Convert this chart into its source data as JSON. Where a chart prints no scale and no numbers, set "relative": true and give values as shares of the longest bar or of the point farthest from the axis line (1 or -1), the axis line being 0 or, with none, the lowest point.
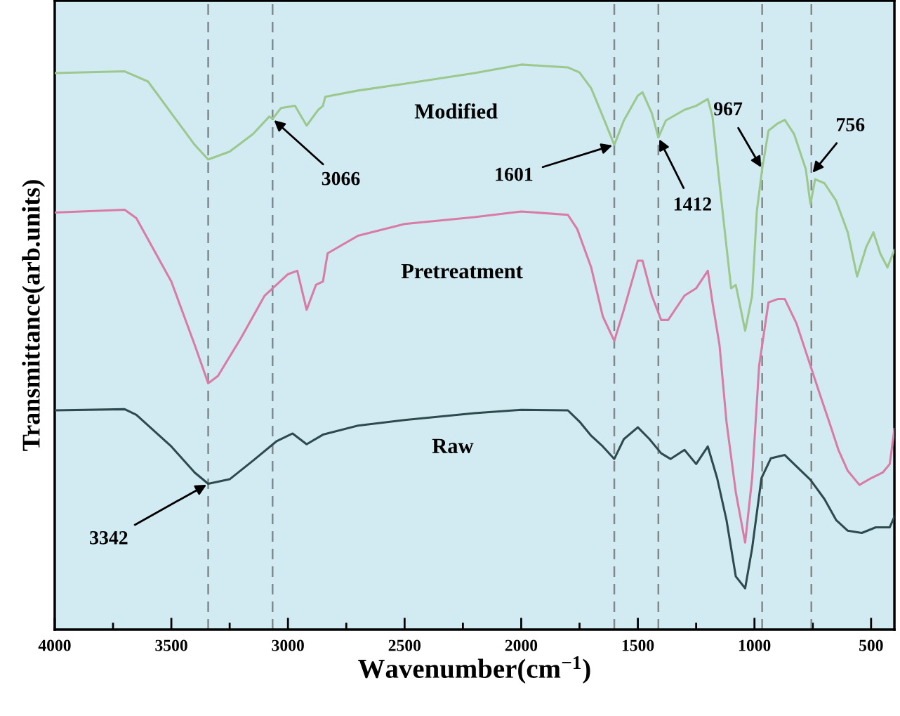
{
  "chart_data": {
    "type": "line",
    "relative": true,
    "xlabel": "Wavenumber(cm$^{−1}$)",
    "ylabel": "Transmittance(arb.units)",
    "xlim": [
      4000,
      400
    ],
    "xticks": [
      4000,
      {
        "value": 3750,
        "label": null
      },
      3500,
      {
        "value": 3250,
        "label": null
      },
      3000,
      {
        "value": 2750,
        "label": null
      },
      2500,
      {
        "value": 2250,
        "label": null
      },
      2000,
      {
        "value": 1750,
        "label": null
      },
      1500,
      {
        "value": 1250,
        "label": null
      },
      1000,
      {
        "value": 750,
        "label": null
      },
      500
    ],
    "grid": false,
    "legend": false,
    "marker": "none",
    "line_style": "solid",
    "series": [
      {
        "name": "Modified",
        "color": "#9dc88d",
        "x": [
          4000,
          3700,
          3600,
          3500,
          3400,
          3342,
          3250,
          3150,
          3080,
          3066,
          3030,
          2970,
          2920,
          2870,
          2850,
          2840,
          2700,
          2500,
          2200,
          2000,
          1800,
          1750,
          1700,
          1650,
          1601,
          1560,
          1500,
          1480,
          1440,
          1412,
          1380,
          1300,
          1250,
          1200,
          1180,
          1150,
          1120,
          1100,
          1080,
          1040,
          1010,
          990,
          967,
          940,
          900,
          870,
          830,
          780,
          760,
          740,
          700,
          650,
          600,
          560,
          520,
          490,
          460,
          430,
          400
        ],
        "values": [
          0.985,
          0.988,
          0.97,
          0.914,
          0.858,
          0.832,
          0.846,
          0.877,
          0.908,
          0.904,
          0.923,
          0.927,
          0.892,
          0.92,
          0.927,
          0.943,
          0.954,
          0.966,
          0.985,
          1,
          0.995,
          0.986,
          0.958,
          0.908,
          0.858,
          0.901,
          0.945,
          0.951,
          0.914,
          0.871,
          0.901,
          0.92,
          0.927,
          0.939,
          0.908,
          0.79,
          0.678,
          0.604,
          0.61,
          0.529,
          0.591,
          0.74,
          0.815,
          0.883,
          0.896,
          0.902,
          0.877,
          0.815,
          0.753,
          0.797,
          0.79,
          0.759,
          0.703,
          0.625,
          0.678,
          0.703,
          0.665,
          0.641,
          0.672
        ]
      },
      {
        "name": "Pretreatment",
        "color": "#d97ba6",
        "x": [
          4000,
          3700,
          3650,
          3500,
          3400,
          3342,
          3300,
          3200,
          3100,
          3000,
          2960,
          2920,
          2880,
          2850,
          2830,
          2700,
          2500,
          2200,
          2000,
          1800,
          1760,
          1700,
          1650,
          1601,
          1560,
          1500,
          1480,
          1440,
          1400,
          1370,
          1300,
          1250,
          1200,
          1180,
          1150,
          1120,
          1080,
          1040,
          1010,
          980,
          940,
          900,
          870,
          820,
          760,
          720,
          680,
          640,
          600,
          550,
          500,
          450,
          420,
          400
        ],
        "values": [
          0.738,
          0.743,
          0.728,
          0.616,
          0.504,
          0.436,
          0.449,
          0.517,
          0.591,
          0.629,
          0.635,
          0.566,
          0.61,
          0.616,
          0.666,
          0.697,
          0.718,
          0.73,
          0.74,
          0.734,
          0.709,
          0.641,
          0.554,
          0.511,
          0.566,
          0.653,
          0.653,
          0.591,
          0.548,
          0.548,
          0.591,
          0.604,
          0.635,
          0.579,
          0.504,
          0.368,
          0.243,
          0.154,
          0.268,
          0.467,
          0.579,
          0.585,
          0.585,
          0.542,
          0.467,
          0.417,
          0.368,
          0.318,
          0.281,
          0.256,
          0.268,
          0.278,
          0.293,
          0.355
        ]
      },
      {
        "name": "Raw",
        "color": "#2f4a4f",
        "x": [
          4000,
          3700,
          3650,
          3500,
          3400,
          3342,
          3250,
          3150,
          3050,
          2980,
          2920,
          2850,
          2700,
          2500,
          2200,
          2000,
          1800,
          1750,
          1700,
          1650,
          1601,
          1560,
          1500,
          1450,
          1400,
          1360,
          1300,
          1250,
          1200,
          1160,
          1120,
          1080,
          1040,
          1010,
          970,
          930,
          870,
          800,
          760,
          700,
          650,
          600,
          540,
          480,
          420,
          400
        ],
        "values": [
          0.388,
          0.39,
          0.38,
          0.324,
          0.278,
          0.258,
          0.266,
          0.299,
          0.333,
          0.347,
          0.328,
          0.345,
          0.361,
          0.371,
          0.383,
          0.389,
          0.388,
          0.368,
          0.343,
          0.324,
          0.302,
          0.337,
          0.358,
          0.337,
          0.312,
          0.302,
          0.318,
          0.293,
          0.324,
          0.268,
          0.194,
          0.094,
          0.073,
          0.144,
          0.268,
          0.303,
          0.309,
          0.281,
          0.265,
          0.231,
          0.194,
          0.175,
          0.171,
          0.181,
          0.181,
          0.2
        ]
      }
    ],
    "ref_lines": [
      {
        "axis": "x",
        "value": 3342,
        "color": "#808a8c",
        "line_style": "dashed"
      },
      {
        "axis": "x",
        "value": 3066,
        "color": "#808a8c",
        "line_style": "dashed"
      },
      {
        "axis": "x",
        "value": 1601,
        "color": "#808a8c",
        "line_style": "dashed"
      },
      {
        "axis": "x",
        "value": 1412,
        "color": "#808a8c",
        "line_style": "dashed"
      },
      {
        "axis": "x",
        "value": 967,
        "color": "#808a8c",
        "line_style": "dashed"
      },
      {
        "axis": "x",
        "value": 756,
        "color": "#808a8c",
        "line_style": "dashed"
      }
    ],
    "annotations": [
      {
        "text": "3066",
        "x": 3066,
        "y": 0.904
      },
      {
        "text": "1601",
        "x": 1601,
        "y": 0.858
      },
      {
        "text": "1412",
        "x": 1412,
        "y": 0.871
      },
      {
        "text": "967",
        "x": 967,
        "y": 0.815
      },
      {
        "text": "756",
        "x": 756,
        "y": 0.806
      },
      {
        "text": "3342",
        "x": 3342,
        "y": 0.258
      }
    ]
  }
}
